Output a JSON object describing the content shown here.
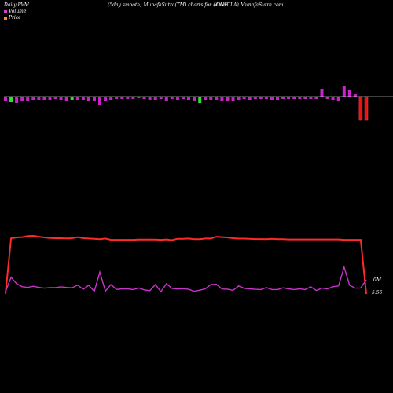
{
  "header": {
    "left": "Daily PVM",
    "center": "(5day smooth) MunafaSutra(TM) charts for AONE",
    "right": "(One   CLA) MunafaSutra.com"
  },
  "legend": [
    {
      "label": "Volume",
      "color": "#cc44cc"
    },
    {
      "label": "Price",
      "color": "#ff8833"
    }
  ],
  "colors": {
    "background": "#000000",
    "price_line": "#ff2a2a",
    "volume_line": "#cc33cc",
    "bar_up": "#cc22cc",
    "bar_down": "#33dd33",
    "bar_big_down": "#ee1111",
    "baseline": "#ffffff"
  },
  "chart_data": {
    "type": "line",
    "title": "(5day smooth) MunafaSutra(TM) charts for AONE",
    "end_labels": {
      "volume": "0M",
      "price": "5.56"
    },
    "series": [
      {
        "name": "Price",
        "values": [
          5.56,
          9.55,
          9.62,
          9.64,
          9.72,
          9.73,
          9.67,
          9.62,
          9.58,
          9.56,
          9.56,
          9.55,
          9.56,
          9.64,
          9.56,
          9.54,
          9.52,
          9.49,
          9.54,
          9.44,
          9.44,
          9.44,
          9.44,
          9.44,
          9.46,
          9.46,
          9.46,
          9.46,
          9.44,
          9.47,
          9.42,
          9.52,
          9.52,
          9.54,
          9.49,
          9.49,
          9.54,
          9.54,
          9.67,
          9.64,
          9.61,
          9.56,
          9.53,
          9.53,
          9.52,
          9.5,
          9.5,
          9.49,
          9.52,
          9.49,
          9.49,
          9.47,
          9.47,
          9.47,
          9.47,
          9.47,
          9.47,
          9.47,
          9.47,
          9.47,
          9.47,
          9.44,
          9.44,
          9.44,
          9.44,
          5.56
        ]
      },
      {
        "name": "Volume",
        "values": [
          1.6,
          11.5,
          7.1,
          5.0,
          4.5,
          5.3,
          4.5,
          4.0,
          4.4,
          4.4,
          4.9,
          4.5,
          4.2,
          6.1,
          3.2,
          6.0,
          1.8,
          15.0,
          2.0,
          6.5,
          3.1,
          3.5,
          3.5,
          3.0,
          4.1,
          2.8,
          2.2,
          6.5,
          1.5,
          7.1,
          3.8,
          3.4,
          3.6,
          3.2,
          1.8,
          2.6,
          3.5,
          6.5,
          6.7,
          3.4,
          3.3,
          2.5,
          5.5,
          3.9,
          3.5,
          3.2,
          3.0,
          4.4,
          3.0,
          3.0,
          4.2,
          3.5,
          3.0,
          3.5,
          3.0,
          4.9,
          2.4,
          4.0,
          3.5,
          5.0,
          5.5,
          18.5,
          6.0,
          4.0,
          4.1,
          9.8
        ]
      }
    ],
    "bars": [
      {
        "type": "up",
        "value": -0.5
      },
      {
        "type": "down",
        "value": -0.7
      },
      {
        "type": "up",
        "value": -0.8
      },
      {
        "type": "up",
        "value": -0.6
      },
      {
        "type": "up",
        "value": -0.5
      },
      {
        "type": "up",
        "value": -0.4
      },
      {
        "type": "up",
        "value": -0.4
      },
      {
        "type": "up",
        "value": -0.4
      },
      {
        "type": "up",
        "value": -0.4
      },
      {
        "type": "up",
        "value": -0.3
      },
      {
        "type": "up",
        "value": -0.4
      },
      {
        "type": "up",
        "value": -0.5
      },
      {
        "type": "down",
        "value": -0.4
      },
      {
        "type": "up",
        "value": -0.4
      },
      {
        "type": "up",
        "value": -0.4
      },
      {
        "type": "up",
        "value": -0.5
      },
      {
        "type": "up",
        "value": -0.6
      },
      {
        "type": "up",
        "value": -1.1
      },
      {
        "type": "up",
        "value": -0.5
      },
      {
        "type": "up",
        "value": -0.4
      },
      {
        "type": "up",
        "value": -0.3
      },
      {
        "type": "up",
        "value": -0.3
      },
      {
        "type": "up",
        "value": -0.3
      },
      {
        "type": "up",
        "value": -0.3
      },
      {
        "type": "up",
        "value": -0.2
      },
      {
        "type": "up",
        "value": -0.3
      },
      {
        "type": "up",
        "value": -0.4
      },
      {
        "type": "up",
        "value": -0.4
      },
      {
        "type": "up",
        "value": -0.3
      },
      {
        "type": "up",
        "value": -0.5
      },
      {
        "type": "up",
        "value": -0.3
      },
      {
        "type": "up",
        "value": -0.4
      },
      {
        "type": "up",
        "value": -0.3
      },
      {
        "type": "up",
        "value": -0.4
      },
      {
        "type": "up",
        "value": -0.6
      },
      {
        "type": "down",
        "value": -0.8
      },
      {
        "type": "up",
        "value": -0.4
      },
      {
        "type": "up",
        "value": -0.4
      },
      {
        "type": "up",
        "value": -0.4
      },
      {
        "type": "up",
        "value": -0.5
      },
      {
        "type": "up",
        "value": -0.6
      },
      {
        "type": "up",
        "value": -0.5
      },
      {
        "type": "up",
        "value": -0.4
      },
      {
        "type": "up",
        "value": -0.3
      },
      {
        "type": "up",
        "value": -0.4
      },
      {
        "type": "up",
        "value": -0.3
      },
      {
        "type": "up",
        "value": -0.3
      },
      {
        "type": "up",
        "value": -0.3
      },
      {
        "type": "up",
        "value": -0.4
      },
      {
        "type": "up",
        "value": -0.4
      },
      {
        "type": "up",
        "value": -0.3
      },
      {
        "type": "up",
        "value": -0.3
      },
      {
        "type": "up",
        "value": -0.3
      },
      {
        "type": "up",
        "value": -0.3
      },
      {
        "type": "up",
        "value": -0.3
      },
      {
        "type": "up",
        "value": -0.3
      },
      {
        "type": "up",
        "value": -0.3
      },
      {
        "type": "up",
        "value": 1.0
      },
      {
        "type": "up",
        "value": -0.3
      },
      {
        "type": "up",
        "value": -0.4
      },
      {
        "type": "up",
        "value": -0.6
      },
      {
        "type": "up",
        "value": 1.3
      },
      {
        "type": "up",
        "value": 0.9
      },
      {
        "type": "up",
        "value": 0.4
      },
      {
        "type": "big_down",
        "value": -3.0
      },
      {
        "type": "big_down",
        "value": -3.0
      }
    ]
  }
}
